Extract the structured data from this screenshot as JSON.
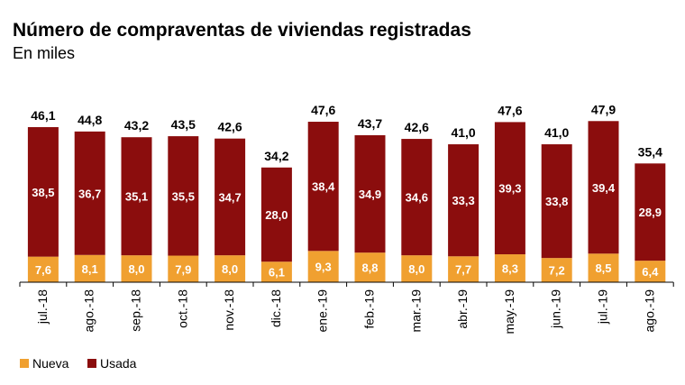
{
  "chart_data": {
    "type": "bar",
    "stacked": true,
    "title": "Número de compraventas de viviendas registradas",
    "subtitle": "En miles",
    "categories": [
      "jul.-18",
      "ago.-18",
      "sep.-18",
      "oct.-18",
      "nov.-18",
      "dic.-18",
      "ene.-19",
      "feb.-19",
      "mar.-19",
      "abr.-19",
      "may.-19",
      "jun.-19",
      "jul.-19",
      "ago.-19"
    ],
    "series": [
      {
        "name": "Nueva",
        "color": "#F0A030",
        "values": [
          7.6,
          8.1,
          8.0,
          7.9,
          8.0,
          6.1,
          9.3,
          8.8,
          8.0,
          7.7,
          8.3,
          7.2,
          8.5,
          6.4
        ],
        "labels": [
          "7,6",
          "8,1",
          "8,0",
          "7,9",
          "8,0",
          "6,1",
          "9,3",
          "8,8",
          "8,0",
          "7,7",
          "8,3",
          "7,2",
          "8,5",
          "6,4"
        ]
      },
      {
        "name": "Usada",
        "color": "#8B0D0D",
        "values": [
          38.5,
          36.7,
          35.1,
          35.5,
          34.7,
          28.0,
          38.4,
          34.9,
          34.6,
          33.3,
          39.3,
          33.8,
          39.4,
          28.9
        ],
        "labels": [
          "38,5",
          "36,7",
          "35,1",
          "35,5",
          "34,7",
          "28,0",
          "38,4",
          "34,9",
          "34,6",
          "33,3",
          "39,3",
          "33,8",
          "39,4",
          "28,9"
        ]
      }
    ],
    "totals": [
      46.1,
      44.8,
      43.2,
      43.5,
      42.6,
      34.2,
      47.6,
      43.7,
      42.6,
      41.0,
      47.6,
      41.0,
      47.9,
      35.4
    ],
    "total_labels": [
      "46,1",
      "44,8",
      "43,2",
      "43,5",
      "42,6",
      "34,2",
      "47,6",
      "43,7",
      "42,6",
      "41,0",
      "47,6",
      "41,0",
      "47,9",
      "35,4"
    ],
    "ylim": [
      0,
      52
    ],
    "legend": "bottom-left",
    "grid": false
  }
}
